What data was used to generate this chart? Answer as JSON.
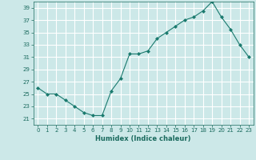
{
  "x": [
    0,
    1,
    2,
    3,
    4,
    5,
    6,
    7,
    8,
    9,
    10,
    11,
    12,
    13,
    14,
    15,
    16,
    17,
    18,
    19,
    20,
    21,
    22,
    23
  ],
  "y": [
    26,
    25,
    25,
    24,
    23,
    22,
    21.5,
    21.5,
    25.5,
    27.5,
    31.5,
    31.5,
    32,
    34,
    35,
    36,
    37,
    37.5,
    38.5,
    40,
    37.5,
    35.5,
    33,
    31
  ],
  "xlabel": "Humidex (Indice chaleur)",
  "xlim": [
    -0.5,
    23.5
  ],
  "ylim": [
    20,
    40
  ],
  "yticks": [
    21,
    23,
    25,
    27,
    29,
    31,
    33,
    35,
    37,
    39
  ],
  "xticks": [
    0,
    1,
    2,
    3,
    4,
    5,
    6,
    7,
    8,
    9,
    10,
    11,
    12,
    13,
    14,
    15,
    16,
    17,
    18,
    19,
    20,
    21,
    22,
    23
  ],
  "line_color": "#1a7a6e",
  "marker_color": "#1a7a6e",
  "bg_color": "#cce8e8",
  "grid_color": "#ffffff",
  "text_color": "#1a6a5e"
}
